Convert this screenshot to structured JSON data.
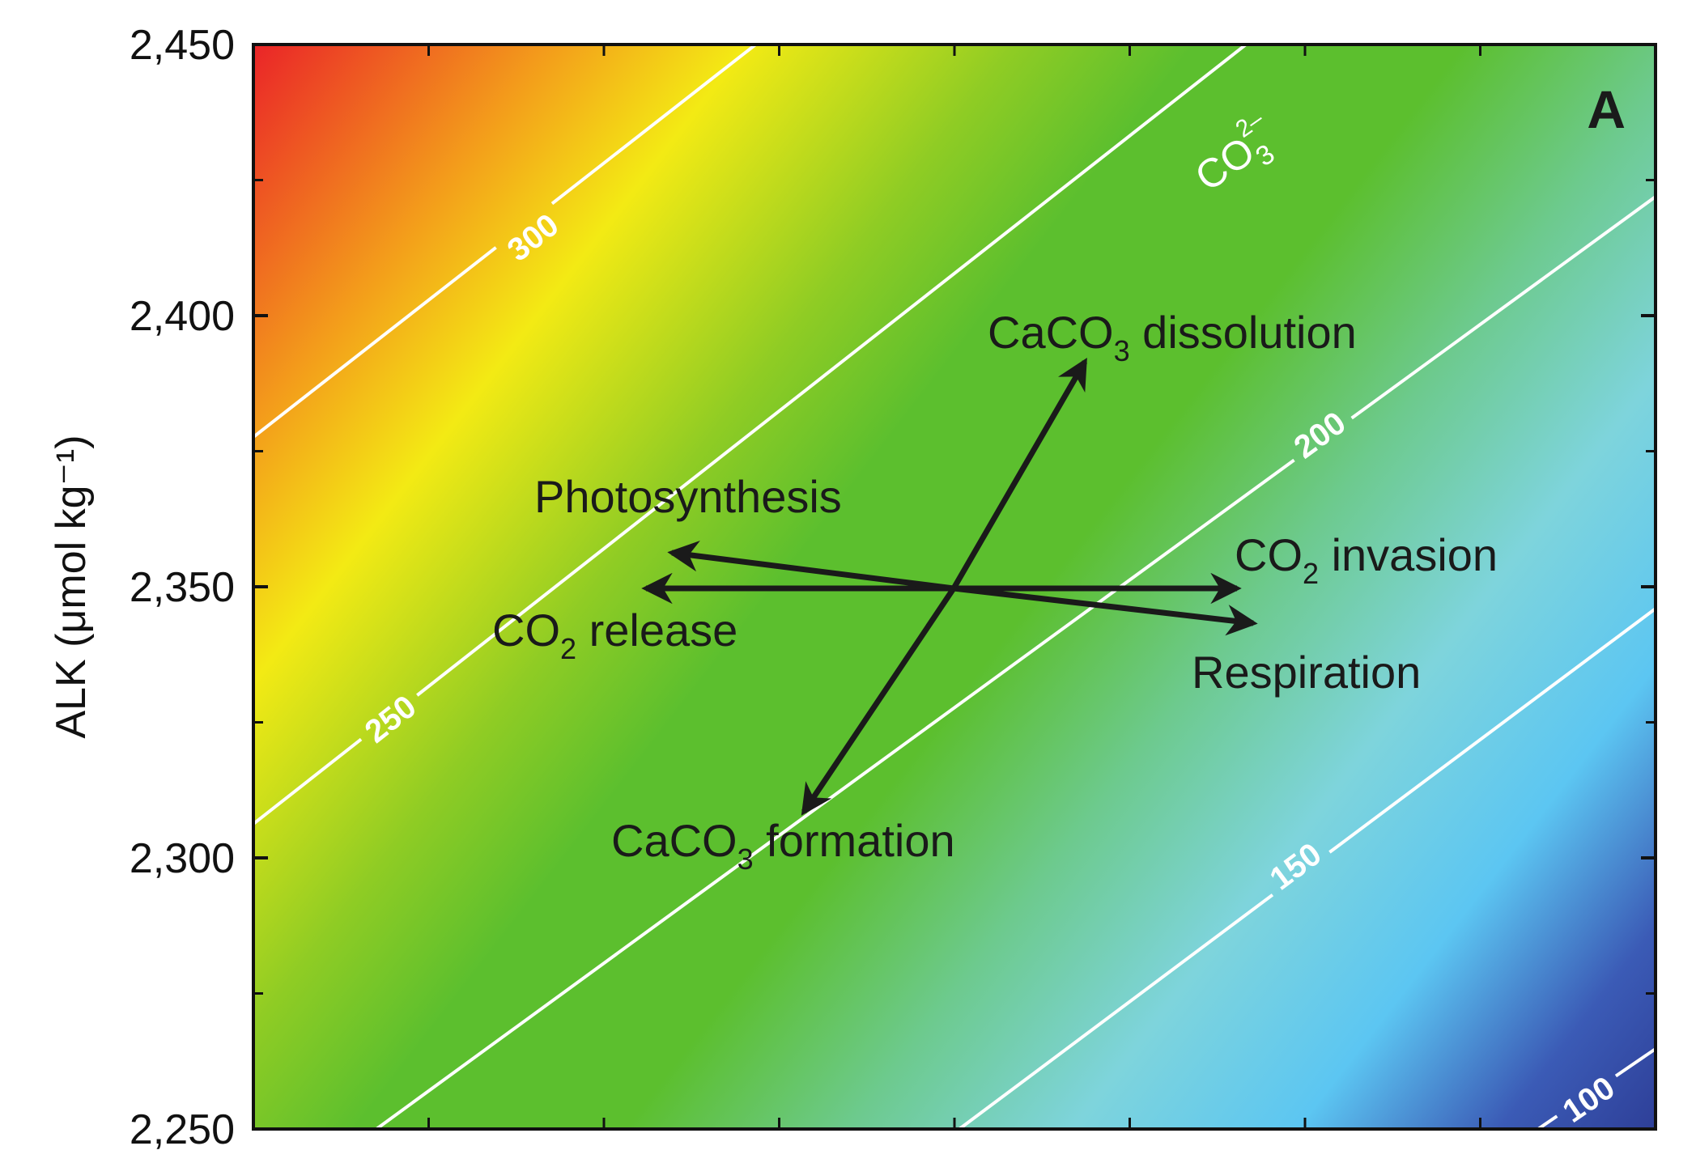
{
  "chart_data": {
    "type": "heatmap",
    "panel_letter": "A",
    "ylabel": "ALK (μmol kg⁻¹)",
    "ylim": [
      2250,
      2450
    ],
    "y_ticks": [
      2250,
      2300,
      2350,
      2400,
      2450
    ],
    "y_tick_labels": [
      "2,250",
      "2,300",
      "2,350",
      "2,400",
      "2,450"
    ],
    "x_tick_labels": [],
    "x_tick_count": 8,
    "grid": false,
    "colorscale": [
      "#2e3f98",
      "#3a5bb8",
      "#5bc8f0",
      "#7ed4dc",
      "#6ccb6e",
      "#5cbf2e",
      "#e8ec14",
      "#f5a01a",
      "#ea2428"
    ],
    "contour_color": "#ffffff",
    "species_label": {
      "base": "CO",
      "sub": "3",
      "sup": "2–"
    },
    "contours": [
      {
        "label": "300",
        "value": 300
      },
      {
        "label": "250",
        "value": 250
      },
      {
        "label": "200",
        "value": 200
      },
      {
        "label": "150",
        "value": 150
      },
      {
        "label": "100",
        "value": 100
      }
    ],
    "processes": [
      {
        "name": "CaCO3 dissolution",
        "base": "CaCO",
        "sub": "3",
        "rest": " dissolution"
      },
      {
        "name": "Photosynthesis",
        "base": "Photosynthesis",
        "sub": "",
        "rest": ""
      },
      {
        "name": "CO2 invasion",
        "base": "CO",
        "sub": "2",
        "rest": " invasion"
      },
      {
        "name": "CO2 release",
        "base": "CO",
        "sub": "2",
        "rest": " release"
      },
      {
        "name": "Respiration",
        "base": "Respiration",
        "sub": "",
        "rest": ""
      },
      {
        "name": "CaCO3 formation",
        "base": "CaCO",
        "sub": "3",
        "rest": " formation"
      }
    ],
    "arrow_color": "#1a1a1a"
  }
}
